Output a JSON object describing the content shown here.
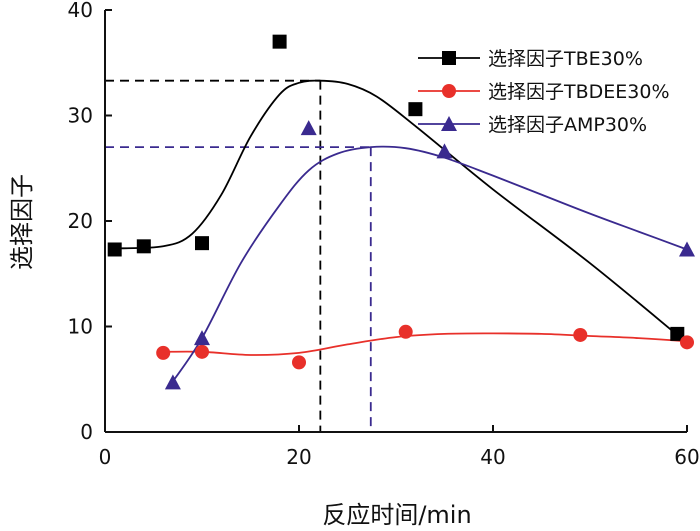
{
  "chart_data": {
    "type": "scatter",
    "title": "",
    "xlabel": "反应时间/min",
    "ylabel": "选择因子",
    "xlim": [
      0,
      60
    ],
    "ylim": [
      0,
      40
    ],
    "xticks": [
      0,
      20,
      40,
      60
    ],
    "yticks": [
      0,
      10,
      20,
      30,
      40
    ],
    "grid": false,
    "legend_position": "top-right",
    "series": [
      {
        "name": "选择因子TBE30%",
        "color": "#000000",
        "marker": "square",
        "points": [
          [
            1,
            17.3
          ],
          [
            4,
            17.6
          ],
          [
            10,
            17.9
          ],
          [
            18,
            37.0
          ],
          [
            32,
            30.6
          ],
          [
            59,
            9.3
          ]
        ],
        "curve": [
          [
            1,
            17.4
          ],
          [
            6,
            17.6
          ],
          [
            9,
            18.8
          ],
          [
            12,
            22.5
          ],
          [
            15,
            28.0
          ],
          [
            18,
            32.0
          ],
          [
            20,
            33.1
          ],
          [
            22.2,
            33.3
          ],
          [
            25,
            33.0
          ],
          [
            28,
            31.8
          ],
          [
            32,
            29.0
          ],
          [
            40,
            23.0
          ],
          [
            50,
            16.0
          ],
          [
            59,
            9.2
          ]
        ]
      },
      {
        "name": "选择因子TBDEE30%",
        "color": "#e8302a",
        "marker": "circle",
        "points": [
          [
            6,
            7.5
          ],
          [
            10,
            7.6
          ],
          [
            20,
            6.6
          ],
          [
            31,
            9.5
          ],
          [
            49,
            9.2
          ],
          [
            60,
            8.5
          ]
        ],
        "curve": [
          [
            6,
            7.6
          ],
          [
            10,
            7.6
          ],
          [
            15,
            7.3
          ],
          [
            20,
            7.5
          ],
          [
            25,
            8.3
          ],
          [
            30,
            9.0
          ],
          [
            35,
            9.3
          ],
          [
            40,
            9.35
          ],
          [
            45,
            9.3
          ],
          [
            50,
            9.1
          ],
          [
            55,
            8.9
          ],
          [
            60,
            8.6
          ]
        ]
      },
      {
        "name": "选择因子AMP30%",
        "color": "#3a2a8f",
        "marker": "triangle",
        "points": [
          [
            7,
            4.7
          ],
          [
            10,
            8.9
          ],
          [
            21,
            28.8
          ],
          [
            35,
            26.6
          ],
          [
            60,
            17.3
          ]
        ],
        "curve": [
          [
            7,
            4.8
          ],
          [
            10,
            8.9
          ],
          [
            14,
            16.0
          ],
          [
            18,
            21.5
          ],
          [
            21,
            24.8
          ],
          [
            24,
            26.4
          ],
          [
            27.4,
            27.0
          ],
          [
            31,
            26.9
          ],
          [
            35,
            26.0
          ],
          [
            40,
            24.3
          ],
          [
            45,
            22.5
          ],
          [
            50,
            20.7
          ],
          [
            55,
            19.0
          ],
          [
            60,
            17.3
          ]
        ]
      }
    ],
    "reference_lines": [
      {
        "color": "#000000",
        "x": 22.2,
        "y": 33.3
      },
      {
        "color": "#3a2a8f",
        "x": 27.4,
        "y": 27.0
      }
    ]
  }
}
